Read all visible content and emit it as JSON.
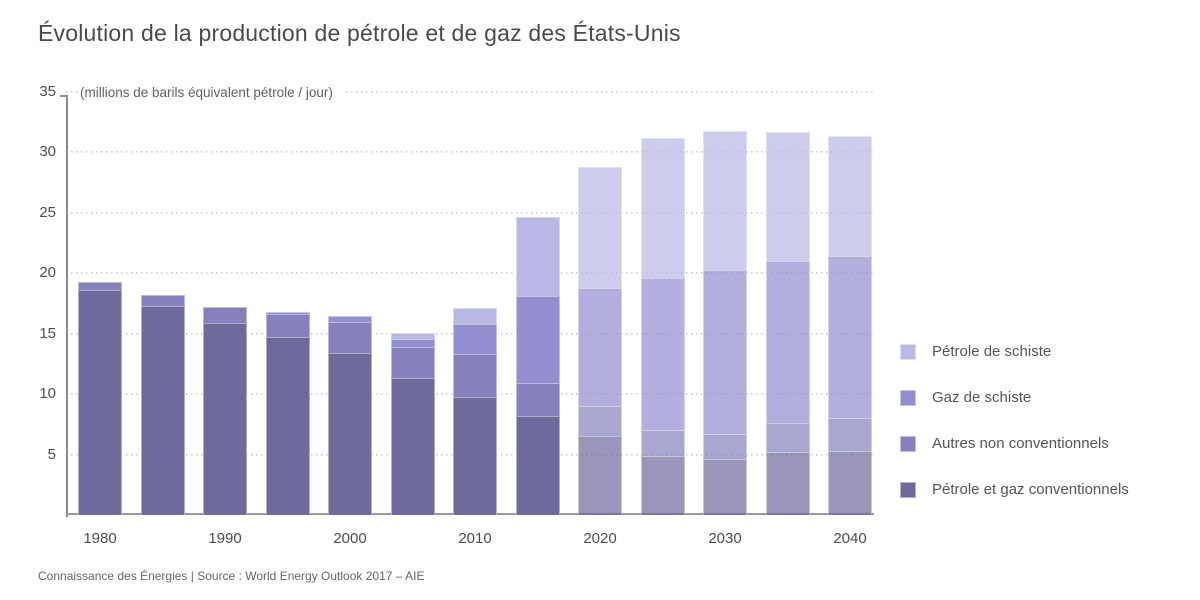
{
  "title": "Évolution de la production de pétrole et de gaz des États-Unis",
  "unit_label": "(millions de barils équivalent pétrole / jour)",
  "footer": "Connaissance des Énergies | Source : World Energy Outlook 2017 – AIE",
  "colors": {
    "petrole_schiste": "#b9b7e6",
    "gaz_schiste": "#928ecf",
    "autres_non_conv": "#8681bd",
    "conventionnels": "#6f6a9c",
    "gridline": "#cccccc",
    "axis": "#8a8a8a",
    "text": "#4d4d4d"
  },
  "chart_data": {
    "type": "bar",
    "stacked": true,
    "title": "Évolution de la production de pétrole et de gaz des États-Unis",
    "ylabel": "(millions de barils équivalent pétrole / jour)",
    "ylim": [
      0,
      35
    ],
    "yticks": [
      5,
      10,
      15,
      20,
      25,
      30,
      35
    ],
    "grid": "dotted-horizontal",
    "legend_position": "right",
    "categories": [
      "1980",
      "1985",
      "1990",
      "1995",
      "2000",
      "2005",
      "2010",
      "2015",
      "2020",
      "2025",
      "2030",
      "2035",
      "2040"
    ],
    "x_tick_labels": [
      "1980",
      "1990",
      "2000",
      "2010",
      "2020",
      "2030",
      "2040"
    ],
    "forecast_start_index": 8,
    "series": [
      {
        "name": "Pétrole et gaz conventionnels",
        "color": "#6f6a9c",
        "values": [
          18.6,
          17.3,
          15.9,
          14.7,
          13.4,
          11.3,
          9.8,
          8.2,
          6.5,
          4.9,
          4.6,
          5.2,
          5.3
        ]
      },
      {
        "name": "Autres non conventionnels",
        "color": "#8681bd",
        "values": [
          0.7,
          0.9,
          1.3,
          1.9,
          2.6,
          2.6,
          3.5,
          2.7,
          2.5,
          2.1,
          2.1,
          2.4,
          2.7
        ]
      },
      {
        "name": "Gaz de schiste",
        "color": "#928ecf",
        "values": [
          0,
          0,
          0,
          0.2,
          0.5,
          0.7,
          2.5,
          7.2,
          9.8,
          12.6,
          13.6,
          13.4,
          13.4
        ]
      },
      {
        "name": "Pétrole de schiste",
        "color": "#b9b7e6",
        "values": [
          0,
          0,
          0,
          0,
          0,
          0.5,
          1.3,
          6.6,
          10.0,
          11.6,
          11.5,
          10.7,
          10.0
        ]
      }
    ],
    "totals": [
      19.3,
      18.2,
      17.2,
      16.8,
      16.5,
      15.1,
      17.1,
      24.7,
      28.8,
      31.2,
      31.8,
      31.7,
      31.4
    ]
  },
  "legend": {
    "items": [
      {
        "label": "Pétrole de schiste",
        "color": "#b9b7e6"
      },
      {
        "label": "Gaz de schiste",
        "color": "#928ecf"
      },
      {
        "label": "Autres non conventionnels",
        "color": "#8681bd"
      },
      {
        "label": "Pétrole et gaz conventionnels",
        "color": "#6f6a9c"
      }
    ]
  }
}
